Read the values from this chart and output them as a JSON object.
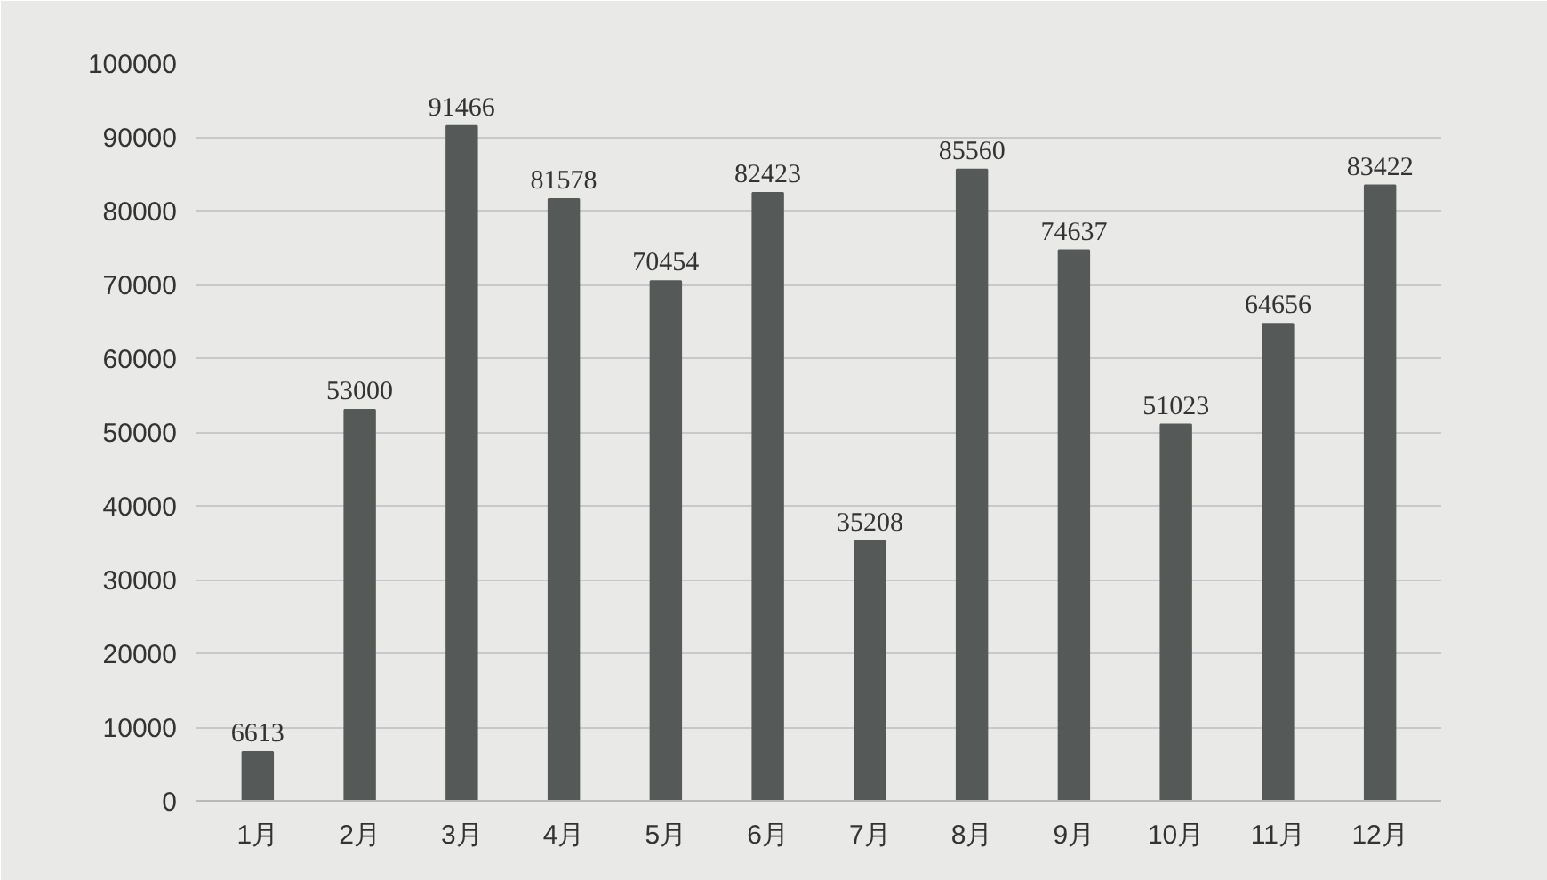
{
  "chart_data": {
    "type": "bar",
    "categories": [
      "1月",
      "2月",
      "3月",
      "4月",
      "5月",
      "6月",
      "7月",
      "8月",
      "9月",
      "10月",
      "11月",
      "12月"
    ],
    "values": [
      6613,
      53000,
      91466,
      81578,
      70454,
      82423,
      35208,
      85560,
      74637,
      51023,
      64656,
      83422
    ],
    "color": "#555a58",
    "ylim": [
      0,
      100000
    ],
    "yticks": [
      0,
      10000,
      20000,
      30000,
      40000,
      50000,
      60000,
      70000,
      80000,
      90000,
      100000
    ],
    "grid": "y",
    "data_labels": true
  }
}
